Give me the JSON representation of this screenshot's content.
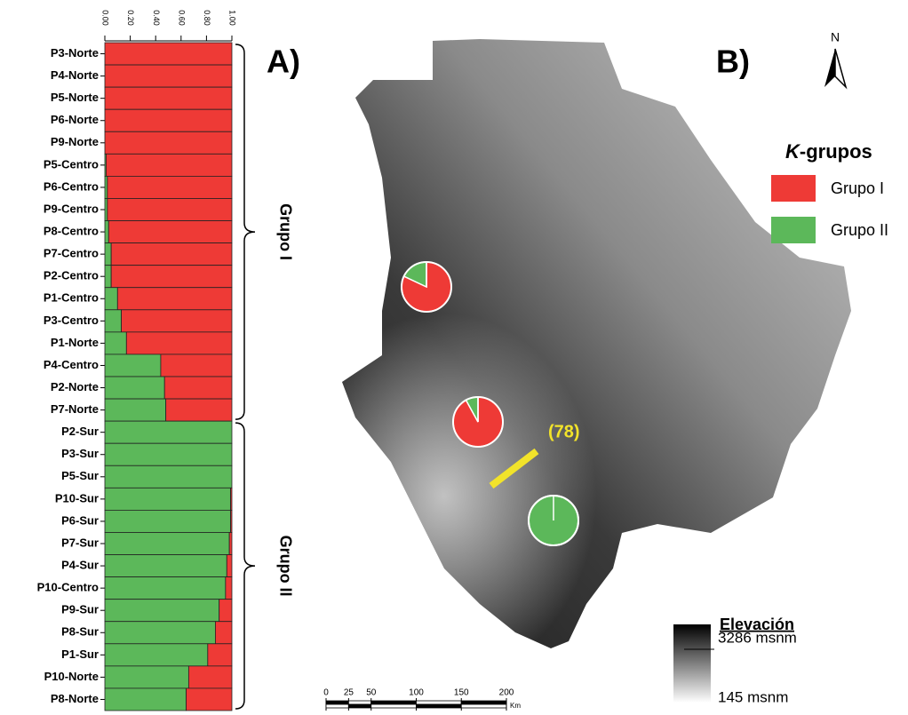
{
  "chart_data": [
    {
      "type": "stacked-barh",
      "title": "A)",
      "categories": [
        "P3-Norte",
        "P4-Norte",
        "P5-Norte",
        "P6-Norte",
        "P9-Norte",
        "P5-Centro",
        "P6-Centro",
        "P9-Centro",
        "P8-Centro",
        "P7-Centro",
        "P2-Centro",
        "P1-Centro",
        "P3-Centro",
        "P1-Norte",
        "P4-Centro",
        "P2-Norte",
        "P7-Norte",
        "P2-Sur",
        "P3-Sur",
        "P5-Sur",
        "P10-Sur",
        "P6-Sur",
        "P7-Sur",
        "P4-Sur",
        "P10-Centro",
        "P9-Sur",
        "P8-Sur",
        "P1-Sur",
        "P10-Norte",
        "P8-Norte"
      ],
      "series": [
        {
          "color": "#5cb85a",
          "values": [
            0,
            0,
            0,
            0,
            0,
            0.01,
            0.02,
            0.02,
            0.03,
            0.05,
            0.05,
            0.1,
            0.13,
            0.17,
            0.44,
            0.47,
            0.48,
            1,
            1,
            1,
            0.99,
            0.99,
            0.98,
            0.96,
            0.95,
            0.9,
            0.87,
            0.81,
            0.66,
            0.64
          ]
        },
        {
          "color": "#ee3a36",
          "values": [
            1,
            1,
            1,
            1,
            1,
            0.99,
            0.98,
            0.98,
            0.97,
            0.95,
            0.95,
            0.9,
            0.87,
            0.83,
            0.56,
            0.53,
            0.52,
            0,
            0,
            0,
            0.01,
            0.01,
            0.02,
            0.04,
            0.05,
            0.1,
            0.13,
            0.19,
            0.34,
            0.36
          ]
        }
      ],
      "xlim": [
        0,
        1
      ],
      "xticks": [
        {
          "value": 0,
          "label": "0.00"
        },
        {
          "value": 0.2,
          "label": "0.20"
        },
        {
          "value": 0.4,
          "label": "0.40"
        },
        {
          "value": 0.6,
          "label": "0.60"
        },
        {
          "value": 0.8,
          "label": "0.80"
        },
        {
          "value": 1,
          "label": "1.00"
        }
      ],
      "groups": [
        "Grupo I",
        "Grupo II"
      ]
    },
    {
      "type": "map-pies",
      "title": "B)",
      "series": [
        {
          "name": "Grupo I",
          "color": "#ee3a36"
        },
        {
          "name": "Grupo II",
          "color": "#5cb85a"
        }
      ],
      "legend_title": "K-grupos",
      "pies": [
        {
          "values": [
            82,
            18
          ]
        },
        {
          "values": [
            92,
            8
          ]
        },
        {
          "values": [
            0,
            100
          ]
        }
      ],
      "annotation": "(78)",
      "north": "N",
      "xticks": [
        0,
        25,
        50,
        100,
        150,
        200
      ],
      "xlim": [
        0,
        200
      ],
      "xlabel": "Km",
      "colorbar_title": "Elevación",
      "colorbar_labels": [
        "3286 msnm",
        "145 msnm"
      ]
    }
  ]
}
